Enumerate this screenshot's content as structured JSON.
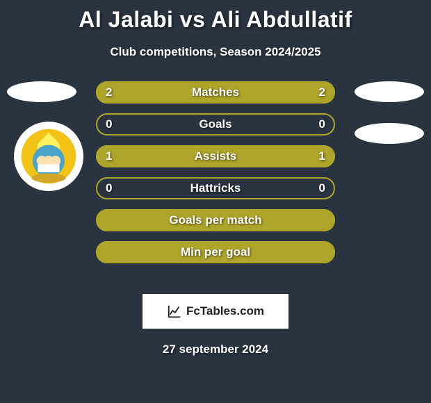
{
  "background_color": "#2a3440",
  "header": {
    "title": "Al Jalabi vs Ali Abdullatif",
    "subtitle": "Club competitions, Season 2024/2025",
    "title_fontsize": 32,
    "subtitle_fontsize": 17
  },
  "avatars": {
    "left_flag_color": "#ffffff",
    "right_flag_1_color": "#ffffff",
    "right_flag_2_color": "#ffffff",
    "left_badge_color": "#ffffff"
  },
  "bars": {
    "accent_color": "#aea52b",
    "border_color": "#aea52b",
    "bg_border_only": "#aea52b",
    "label_fontsize": 17,
    "value_fontsize": 17,
    "items": [
      {
        "label": "Matches",
        "left": "2",
        "right": "2",
        "left_pct": 50,
        "right_pct": 50,
        "show_values": true
      },
      {
        "label": "Goals",
        "left": "0",
        "right": "0",
        "left_pct": 0,
        "right_pct": 0,
        "show_values": true
      },
      {
        "label": "Assists",
        "left": "1",
        "right": "1",
        "left_pct": 50,
        "right_pct": 50,
        "show_values": true
      },
      {
        "label": "Hattricks",
        "left": "0",
        "right": "0",
        "left_pct": 0,
        "right_pct": 0,
        "show_values": true
      },
      {
        "label": "Goals per match",
        "left": "",
        "right": "",
        "left_pct": 100,
        "right_pct": 0,
        "show_values": false,
        "filled_full": true
      },
      {
        "label": "Min per goal",
        "left": "",
        "right": "",
        "left_pct": 100,
        "right_pct": 0,
        "show_values": false,
        "filled_full": true
      }
    ]
  },
  "watermark": {
    "text": "FcTables.com",
    "icon_name": "chart-icon"
  },
  "date": "27 september 2024"
}
